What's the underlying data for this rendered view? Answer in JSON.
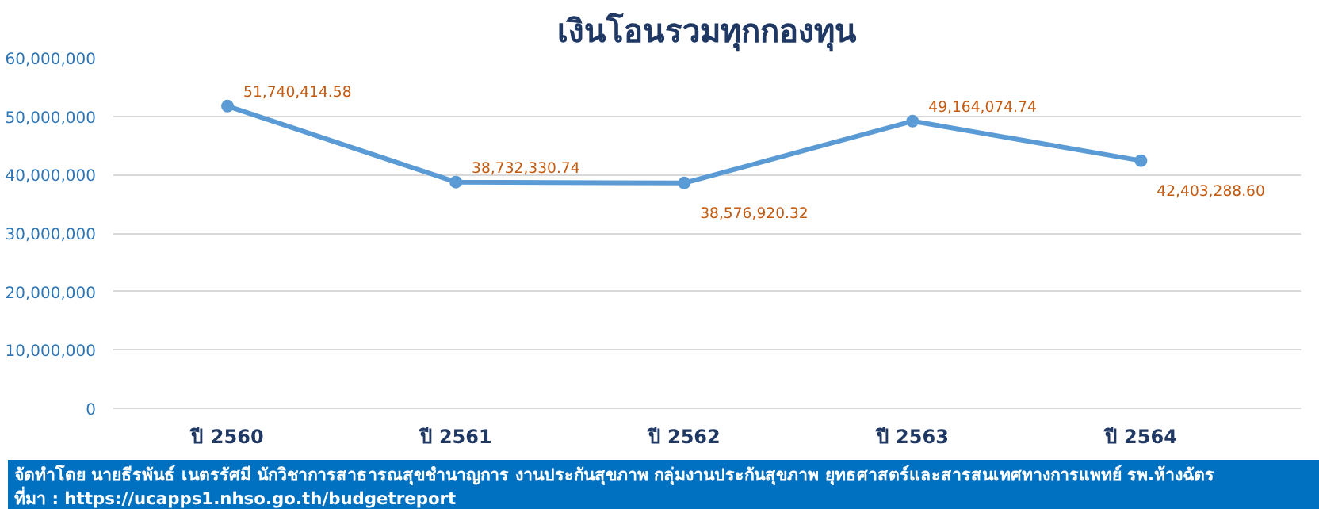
{
  "chart_data": {
    "type": "line",
    "title": "เงินโอนรวมทุกกองทุน",
    "categories": [
      "ปี 2560",
      "ปี 2561",
      "ปี 2562",
      "ปี 2563",
      "ปี 2564"
    ],
    "series": [
      {
        "color": "#5b9bd5",
        "values": [
          51740414.58,
          38732330.74,
          38576920.32,
          49164074.74,
          42403288.6
        ],
        "value_labels": [
          "51,740,414.58",
          "38,732,330.74",
          "38,576,920.32",
          "49,164,074.74",
          "42,403,288.60"
        ]
      }
    ],
    "ylim": [
      0,
      60000000
    ],
    "yticks": [
      {
        "value": 0,
        "label": "0"
      },
      {
        "value": 10000000,
        "label": "10,000,000"
      },
      {
        "value": 20000000,
        "label": "20,000,000"
      },
      {
        "value": 30000000,
        "label": "30,000,000"
      },
      {
        "value": 40000000,
        "label": "40,000,000"
      },
      {
        "value": 50000000,
        "label": "50,000,000"
      },
      {
        "value": 60000000,
        "label": "60,000,000"
      }
    ],
    "grid": "y",
    "marker": "circle",
    "line_style": "solid",
    "annotations": [
      "จัดทำโดย นายธีรพันธ์ เนตรรัศมี นักวิชาการสาธารณสุขชำนาญการ งานประกันสุขภาพ กลุ่มงานประกันสุขภาพ ยุทธศาสตร์และสารสนเทศทางการแพทย์ รพ.ห้างฉัตร",
      "ที่มา : https://ucapps1.nhso.go.th/budgetreport"
    ]
  }
}
